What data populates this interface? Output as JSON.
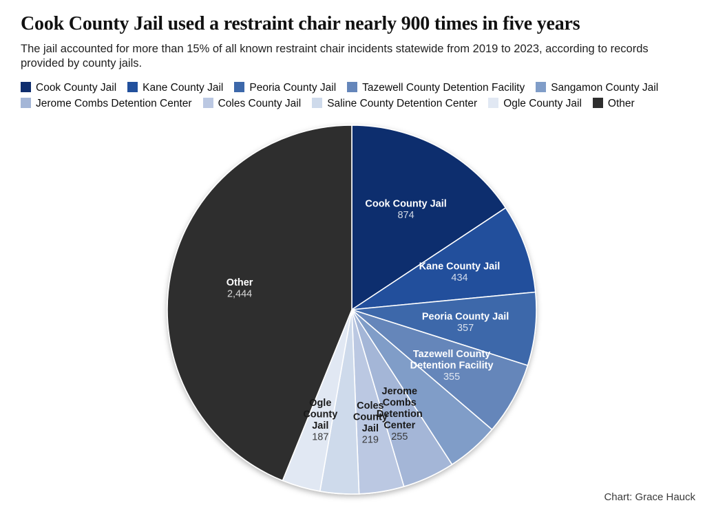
{
  "header": {
    "title": "Cook County Jail used a restraint chair nearly 900 times in five years",
    "subtitle": "The jail accounted for more than 15% of all known restraint chair incidents statewide from 2019 to 2023, according to records provided by county jails."
  },
  "chart_data": {
    "type": "pie",
    "direction": "clockwise",
    "start_angle_deg": 0,
    "total": 5570,
    "legend_position": "top",
    "slices": [
      {
        "label": "Cook County Jail",
        "value": 874,
        "display_value": "874",
        "color": "#0f2e6e",
        "label_lines": [
          "Cook County Jail"
        ],
        "label_theme": "light",
        "label_shown": true,
        "estimated": false
      },
      {
        "label": "Kane County Jail",
        "value": 434,
        "display_value": "434",
        "color": "#22509c",
        "label_lines": [
          "Kane County Jail"
        ],
        "label_theme": "light",
        "label_shown": true,
        "estimated": false
      },
      {
        "label": "Peoria County Jail",
        "value": 357,
        "display_value": "357",
        "color": "#3d68aa",
        "label_lines": [
          "Peoria County Jail"
        ],
        "label_theme": "light",
        "label_shown": true,
        "estimated": false
      },
      {
        "label": "Tazewell County Detention Facility",
        "value": 355,
        "display_value": "355",
        "color": "#6586ba",
        "label_lines": [
          "Tazewell County",
          "Detention Facility"
        ],
        "label_theme": "light",
        "label_shown": true,
        "estimated": false
      },
      {
        "label": "Sangamon County Jail",
        "value": 256,
        "display_value": "",
        "color": "#809dc8",
        "label_lines": [],
        "label_theme": "dark",
        "label_shown": false,
        "estimated": true
      },
      {
        "label": "Jerome Combs Detention Center",
        "value": 255,
        "display_value": "255",
        "color": "#a4b6d7",
        "label_lines": [
          "Jerome",
          "Combs",
          "Detention",
          "Center"
        ],
        "label_theme": "dark",
        "label_shown": true,
        "estimated": false
      },
      {
        "label": "Coles County Jail",
        "value": 219,
        "display_value": "219",
        "color": "#bbc8e2",
        "label_lines": [
          "Coles",
          "County",
          "Jail"
        ],
        "label_theme": "dark",
        "label_shown": true,
        "estimated": false
      },
      {
        "label": "Saline County Detention Center",
        "value": 189,
        "display_value": "",
        "color": "#cedaeb",
        "label_lines": [],
        "label_theme": "dark",
        "label_shown": false,
        "estimated": true
      },
      {
        "label": "Ogle County Jail",
        "value": 187,
        "display_value": "187",
        "color": "#e1e8f3",
        "label_lines": [
          "Ogle",
          "County",
          "Jail"
        ],
        "label_theme": "dark",
        "label_shown": true,
        "estimated": false
      },
      {
        "label": "Other",
        "value": 2444,
        "display_value": "2,444",
        "color": "#2e2e2e",
        "label_lines": [
          "Other"
        ],
        "label_theme": "light",
        "label_shown": true,
        "estimated": false
      }
    ]
  },
  "footer": {
    "credit": "Chart: Grace Hauck"
  }
}
